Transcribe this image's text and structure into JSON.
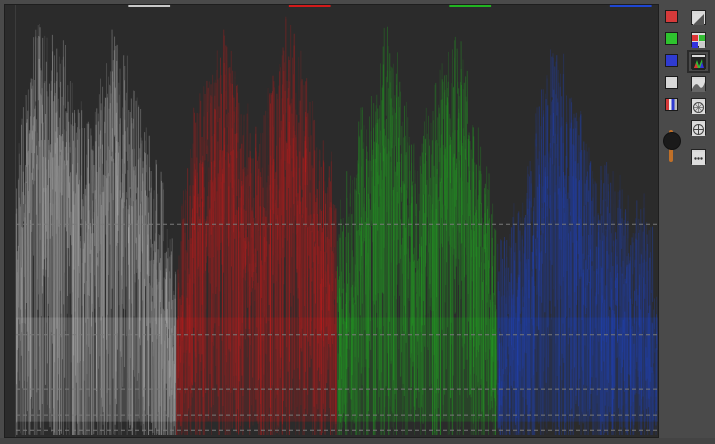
{
  "window": {
    "background": "#4a4a4a"
  },
  "scope": {
    "mode": "rgb-parade",
    "background": "#2b2b2b",
    "gridline_color": "#7a7a7a",
    "channels": [
      {
        "name": "luma",
        "color": "#c8c8c8"
      },
      {
        "name": "red",
        "color": "#d21a1a"
      },
      {
        "name": "green",
        "color": "#21b421"
      },
      {
        "name": "blue",
        "color": "#1e46d2"
      }
    ]
  },
  "sidebar": {
    "channel_toggles": [
      {
        "id": "red",
        "color": "#d63a3a"
      },
      {
        "id": "green",
        "color": "#2ec32e"
      },
      {
        "id": "blue",
        "color": "#2f3bd1"
      },
      {
        "id": "luma",
        "color": "#d8d8d8"
      },
      {
        "id": "parade-colors",
        "color": "stripes"
      }
    ],
    "tools": [
      {
        "id": "waveform-icon"
      },
      {
        "id": "rgb-parade-icon",
        "active": true
      },
      {
        "id": "overlay-parade-icon"
      },
      {
        "id": "histogram-icon"
      },
      {
        "id": "vectorscope-icon"
      },
      {
        "id": "crosshair-scope-icon"
      },
      {
        "id": "more-options-icon"
      }
    ],
    "brightness": {
      "level": 0.25,
      "accent": "#c07028"
    }
  }
}
